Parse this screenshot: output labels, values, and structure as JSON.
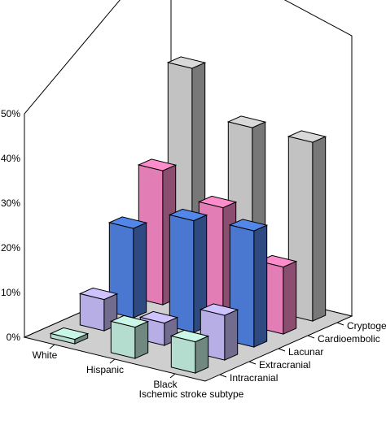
{
  "chart_data": {
    "type": "bar",
    "projection": "3d",
    "categories": [
      "White",
      "Hispanic",
      "Black"
    ],
    "series": [
      {
        "name": "Intracranial",
        "values": [
          1,
          7,
          7
        ]
      },
      {
        "name": "Extracranial",
        "values": [
          7,
          5,
          10
        ]
      },
      {
        "name": "Lacunar",
        "values": [
          20,
          25,
          26
        ]
      },
      {
        "name": "Cardioembolic",
        "values": [
          30,
          25,
          15
        ]
      },
      {
        "name": "Cryptogenic",
        "values": [
          50,
          40,
          40
        ]
      }
    ],
    "yticks": [
      "0%",
      "10%",
      "20%",
      "30%",
      "40%",
      "50%"
    ],
    "ylim": [
      0,
      50
    ],
    "xlabel": "Ischemic stroke subtype",
    "colors": {
      "Intracranial": "#b4dccf",
      "Extracranial": "#b8aee6",
      "Lacunar": "#4a78d0",
      "Cardioembolic": "#e27db5",
      "Cryptogenic": "#c2c2c2",
      "floor": "#cfcfcf"
    }
  }
}
